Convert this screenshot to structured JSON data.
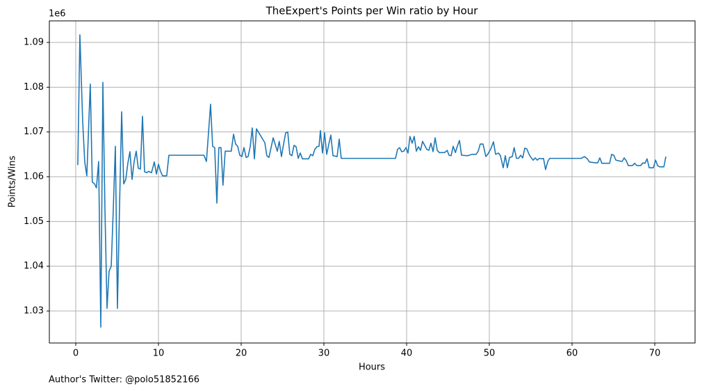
{
  "chart_data": {
    "type": "line",
    "title": "TheExpert's Points per Win ratio by Hour",
    "x_label": "Hours",
    "y_label": "Points/Wins",
    "y_offset_label": "1e6",
    "footnote": "Author's Twitter: @polo51852166",
    "xlim": [
      -3.19,
      74.87
    ],
    "ylim": [
      1.02285,
      1.09482
    ],
    "xticks": [
      0,
      10,
      20,
      30,
      40,
      50,
      60,
      70
    ],
    "yticks": [
      1.03,
      1.04,
      1.05,
      1.06,
      1.07,
      1.08,
      1.09
    ],
    "grid": true,
    "x": [
      0.25,
      0.5,
      0.84,
      1.09,
      1.34,
      1.6,
      1.76,
      2.0,
      2.27,
      2.5,
      2.77,
      3.03,
      3.28,
      3.53,
      3.78,
      4.03,
      4.29,
      4.54,
      4.79,
      5.04,
      5.29,
      5.55,
      5.8,
      6.05,
      6.3,
      6.55,
      6.81,
      7.06,
      7.31,
      7.56,
      7.82,
      8.07,
      8.32,
      8.57,
      8.82,
      9.16,
      9.5,
      9.75,
      10.0,
      10.25,
      10.5,
      11.0,
      11.26,
      15.5,
      15.8,
      16.3,
      16.55,
      16.8,
      17.06,
      17.3,
      17.56,
      17.8,
      18.07,
      18.8,
      19.08,
      19.33,
      19.58,
      19.83,
      20.08,
      20.34,
      20.6,
      20.84,
      21.1,
      21.34,
      21.6,
      21.85,
      22.86,
      23.1,
      23.36,
      23.87,
      24.1,
      24.37,
      24.6,
      24.87,
      25.13,
      25.38,
      25.63,
      25.88,
      26.13,
      26.39,
      26.64,
      26.9,
      27.14,
      27.4,
      28.15,
      28.4,
      28.66,
      28.9,
      29.16,
      29.41,
      29.58,
      29.83,
      30.08,
      30.34,
      30.6,
      30.84,
      31.1,
      31.6,
      31.85,
      32.1,
      38.66,
      38.9,
      39.16,
      39.4,
      39.66,
      39.92,
      40.17,
      40.4,
      40.67,
      40.92,
      41.18,
      41.43,
      41.68,
      41.93,
      42.44,
      42.69,
      42.94,
      43.2,
      43.45,
      43.7,
      43.95,
      44.6,
      44.9,
      45.13,
      45.38,
      45.63,
      45.9,
      46.13,
      46.39,
      46.64,
      47.4,
      47.9,
      48.4,
      48.66,
      48.9,
      49.24,
      49.58,
      49.83,
      50.17,
      50.5,
      50.76,
      51.1,
      51.34,
      51.68,
      51.93,
      52.18,
      52.44,
      52.77,
      53.0,
      53.28,
      53.53,
      53.78,
      54.03,
      54.29,
      54.54,
      54.8,
      55.04,
      55.3,
      55.55,
      55.8,
      56.05,
      56.3,
      56.55,
      56.8,
      57.06,
      57.3,
      61.1,
      61.5,
      61.85,
      62.1,
      62.86,
      63.1,
      63.36,
      63.61,
      64.54,
      64.79,
      65.04,
      65.3,
      66.05,
      66.3,
      66.55,
      66.8,
      67.3,
      67.56,
      67.82,
      68.3,
      68.57,
      68.82,
      69.07,
      69.33,
      69.83,
      70.1,
      70.34,
      70.6,
      71.1,
      71.34
    ],
    "series": [
      {
        "color": "#1f77b4",
        "values": [
          1.0626,
          1.0917,
          1.0723,
          1.0633,
          1.0602,
          1.0731,
          1.0807,
          1.0588,
          1.0584,
          1.0575,
          1.0634,
          1.0264,
          1.0811,
          1.0528,
          1.0306,
          1.0389,
          1.04,
          1.0528,
          1.0668,
          1.0306,
          1.0528,
          1.0745,
          1.0584,
          1.0594,
          1.063,
          1.0656,
          1.0594,
          1.0634,
          1.0657,
          1.0619,
          1.0617,
          1.0735,
          1.0611,
          1.0609,
          1.0612,
          1.0609,
          1.0633,
          1.0606,
          1.0628,
          1.0612,
          1.0602,
          1.0602,
          1.0648,
          1.0648,
          1.0634,
          1.0762,
          1.0668,
          1.0665,
          1.0541,
          1.0665,
          1.0665,
          1.0581,
          1.0657,
          1.0657,
          1.0695,
          1.0673,
          1.0668,
          1.0648,
          1.0645,
          1.0665,
          1.0643,
          1.0645,
          1.0668,
          1.0709,
          1.064,
          1.0707,
          1.0676,
          1.0647,
          1.0643,
          1.0687,
          1.0673,
          1.0657,
          1.0679,
          1.0645,
          1.0673,
          1.0698,
          1.07,
          1.065,
          1.0647,
          1.067,
          1.0667,
          1.0641,
          1.0653,
          1.064,
          1.064,
          1.065,
          1.0647,
          1.0661,
          1.0667,
          1.0668,
          1.0703,
          1.0653,
          1.0698,
          1.065,
          1.0673,
          1.0693,
          1.0647,
          1.0645,
          1.0684,
          1.0641,
          1.0641,
          1.0661,
          1.0665,
          1.0656,
          1.0657,
          1.0665,
          1.0653,
          1.069,
          1.0675,
          1.069,
          1.0657,
          1.0667,
          1.0659,
          1.0679,
          1.0661,
          1.0659,
          1.0675,
          1.0656,
          1.0687,
          1.0659,
          1.0654,
          1.0654,
          1.0659,
          1.0648,
          1.0647,
          1.0668,
          1.0654,
          1.0668,
          1.0681,
          1.0648,
          1.0647,
          1.065,
          1.065,
          1.0657,
          1.0673,
          1.0673,
          1.0645,
          1.0651,
          1.0662,
          1.0678,
          1.065,
          1.0653,
          1.0647,
          1.062,
          1.0647,
          1.062,
          1.0643,
          1.0645,
          1.0665,
          1.0641,
          1.0641,
          1.0648,
          1.0642,
          1.0664,
          1.0662,
          1.065,
          1.0643,
          1.0637,
          1.0642,
          1.0637,
          1.0641,
          1.064,
          1.0641,
          1.0616,
          1.0634,
          1.0641,
          1.0641,
          1.0645,
          1.064,
          1.0633,
          1.0631,
          1.0631,
          1.0642,
          1.063,
          1.063,
          1.065,
          1.0648,
          1.0637,
          1.0634,
          1.0642,
          1.0636,
          1.0625,
          1.0625,
          1.063,
          1.0625,
          1.0625,
          1.0631,
          1.063,
          1.064,
          1.062,
          1.062,
          1.0637,
          1.0625,
          1.0622,
          1.0622,
          1.0645
        ]
      }
    ]
  }
}
